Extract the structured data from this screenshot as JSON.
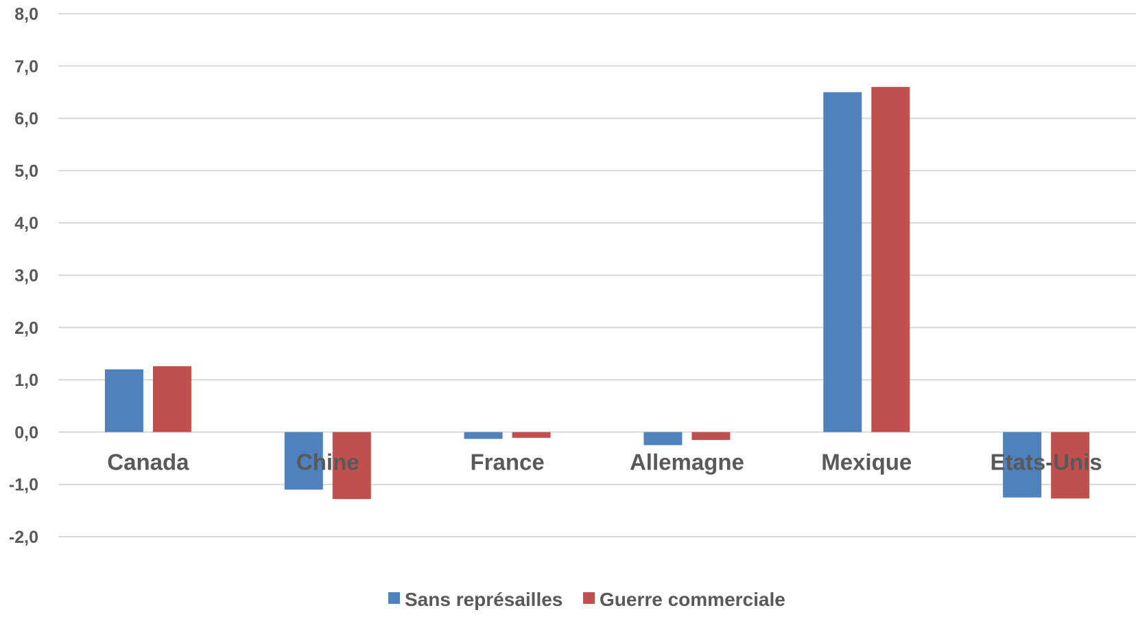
{
  "chart_data": {
    "type": "bar",
    "title": "",
    "xlabel": "",
    "ylabel": "",
    "categories": [
      "Canada",
      "Chine",
      "France",
      "Allemagne",
      "Mexique",
      "Etats-Unis"
    ],
    "series": [
      {
        "name": "Sans représailles",
        "color": "#4F81BD",
        "values": [
          1.2,
          -1.1,
          -0.13,
          -0.25,
          6.5,
          -1.25
        ]
      },
      {
        "name": "Guerre commerciale",
        "color": "#C0504D",
        "values": [
          1.26,
          -1.28,
          -0.11,
          -0.15,
          6.6,
          -1.27
        ]
      }
    ],
    "ylim": [
      -2.0,
      8.0
    ],
    "yticks": [
      "-2,0",
      "-1,0",
      "0,0",
      "1,0",
      "2,0",
      "3,0",
      "4,0",
      "5,0",
      "6,0",
      "7,0",
      "8,0"
    ],
    "grid": true,
    "legend_position": "bottom",
    "gridline_color": "#D9D9D9",
    "text_color": "#595959"
  }
}
